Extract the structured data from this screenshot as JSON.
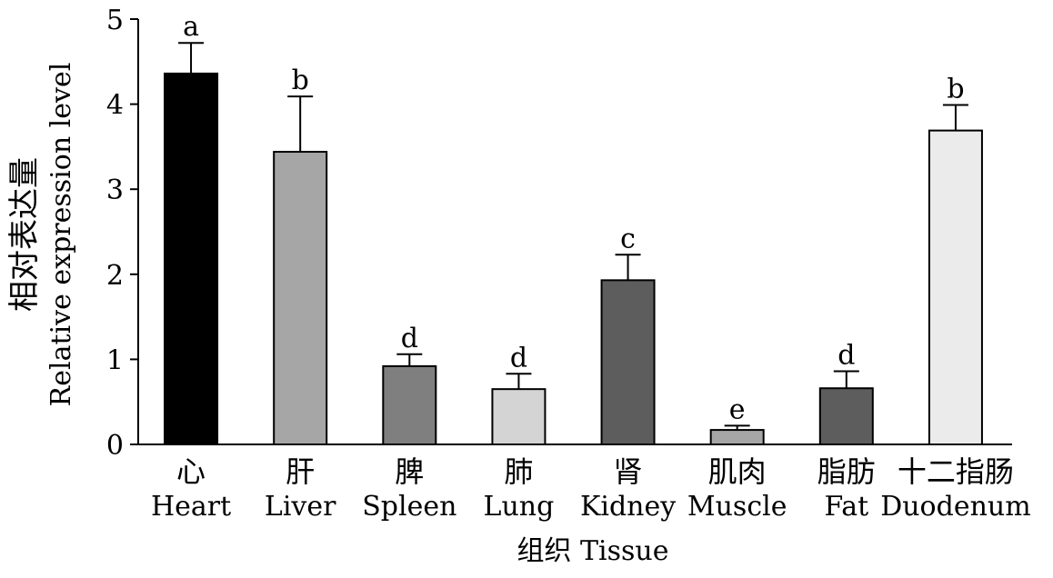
{
  "chart_data": {
    "type": "bar",
    "ylabel_cn": "相对表达量",
    "ylabel_en": "Relative expression level",
    "xlabel": "组织 Tissue",
    "ylim": [
      0,
      5
    ],
    "yticks": [
      "0",
      "1",
      "2",
      "3",
      "4",
      "5"
    ],
    "grid": false,
    "categories": [
      {
        "cn": "心",
        "en": "Heart"
      },
      {
        "cn": "肝",
        "en": "Liver"
      },
      {
        "cn": "脾",
        "en": "Spleen"
      },
      {
        "cn": "肺",
        "en": "Lung"
      },
      {
        "cn": "肾",
        "en": "Kidney"
      },
      {
        "cn": "肌肉",
        "en": "Muscle"
      },
      {
        "cn": "脂肪",
        "en": "Fat"
      },
      {
        "cn": "十二指肠",
        "en": "Duodenum"
      }
    ],
    "values": [
      4.36,
      3.44,
      0.92,
      0.65,
      1.93,
      0.17,
      0.66,
      3.69
    ],
    "errors": [
      0.36,
      0.65,
      0.14,
      0.18,
      0.3,
      0.05,
      0.2,
      0.3
    ],
    "significance": [
      "a",
      "b",
      "d",
      "d",
      "c",
      "e",
      "d",
      "b"
    ],
    "colors": [
      "#000000",
      "#a6a6a6",
      "#7f7f7f",
      "#d4d4d4",
      "#5d5d5d",
      "#a6a6a6",
      "#5d5d5d",
      "#ebebeb"
    ]
  }
}
